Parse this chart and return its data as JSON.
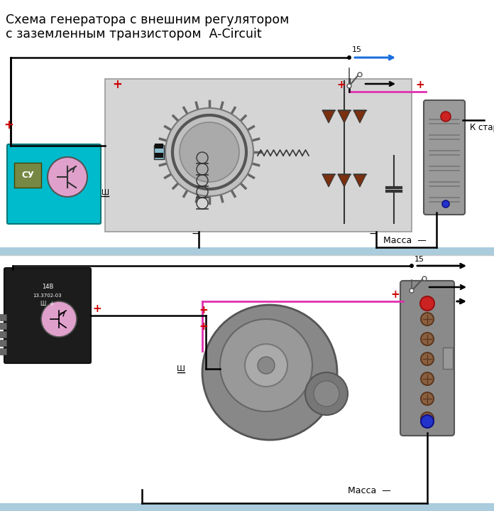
{
  "title_line1": "Схема генератора с внешним регулятором",
  "title_line2": "с заземленным транзистором  A-Circuit",
  "bg_color": "#ffffff",
  "blue_line_color": "#1a6fdd",
  "pink_line_color": "#e030b0",
  "red_color": "#cc0000",
  "mass_text": "Масса",
  "k_starter_text": "К стартеру",
  "label_15": "15",
  "label_sh": "Ш",
  "label_cy": "СУ",
  "ground_bar_color": "#aaccdd"
}
